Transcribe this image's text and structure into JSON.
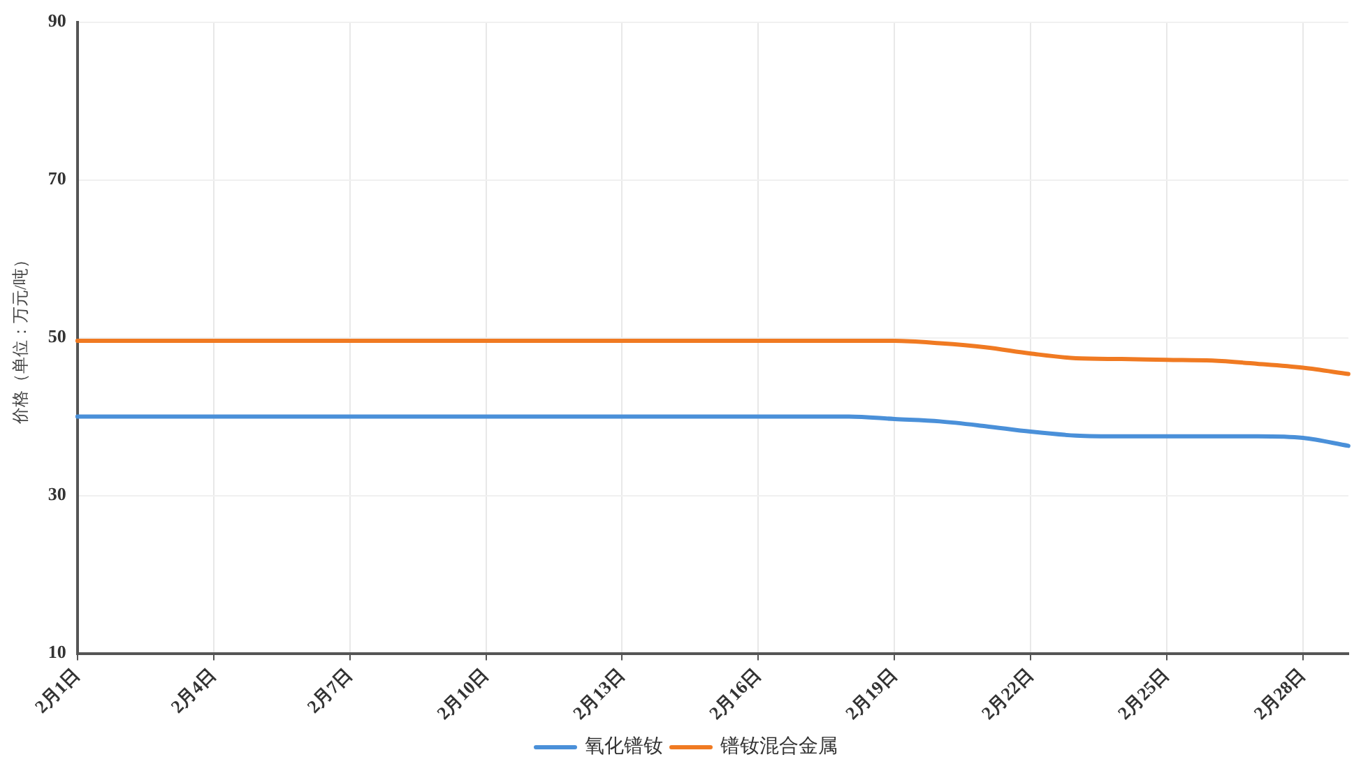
{
  "chart_data": {
    "type": "line",
    "ylabel": "价格（单位：万元/吨）",
    "categories": [
      "2月1日",
      null,
      null,
      "2月4日",
      null,
      null,
      "2月7日",
      null,
      null,
      "2月10日",
      null,
      null,
      "2月13日",
      null,
      null,
      "2月16日",
      null,
      null,
      "2月19日",
      null,
      null,
      "2月22日",
      null,
      null,
      "2月25日",
      null,
      null,
      "2月28日",
      null
    ],
    "series": [
      {
        "name": "氧化镨钕",
        "color": "#4a90d9",
        "values": [
          40,
          40,
          40,
          40,
          40,
          40,
          40,
          40,
          40,
          40,
          40,
          40,
          40,
          40,
          40,
          40,
          40,
          40,
          39.7,
          39.4,
          38.8,
          38.1,
          37.6,
          37.5,
          37.5,
          37.5,
          37.5,
          37.3,
          36.3
        ]
      },
      {
        "name": "镨钕混合金属",
        "color": "#f07a22",
        "values": [
          49.6,
          49.6,
          49.6,
          49.6,
          49.6,
          49.6,
          49.6,
          49.6,
          49.6,
          49.6,
          49.6,
          49.6,
          49.6,
          49.6,
          49.6,
          49.6,
          49.6,
          49.6,
          49.6,
          49.3,
          48.8,
          48,
          47.4,
          47.3,
          47.2,
          47.1,
          46.7,
          46.2,
          45.4
        ]
      }
    ],
    "ylim": [
      10,
      90
    ],
    "yticks": [
      10,
      30,
      50,
      70,
      90
    ],
    "grid": true,
    "legend": "bottom",
    "marker": "none",
    "line_style": "solid"
  }
}
